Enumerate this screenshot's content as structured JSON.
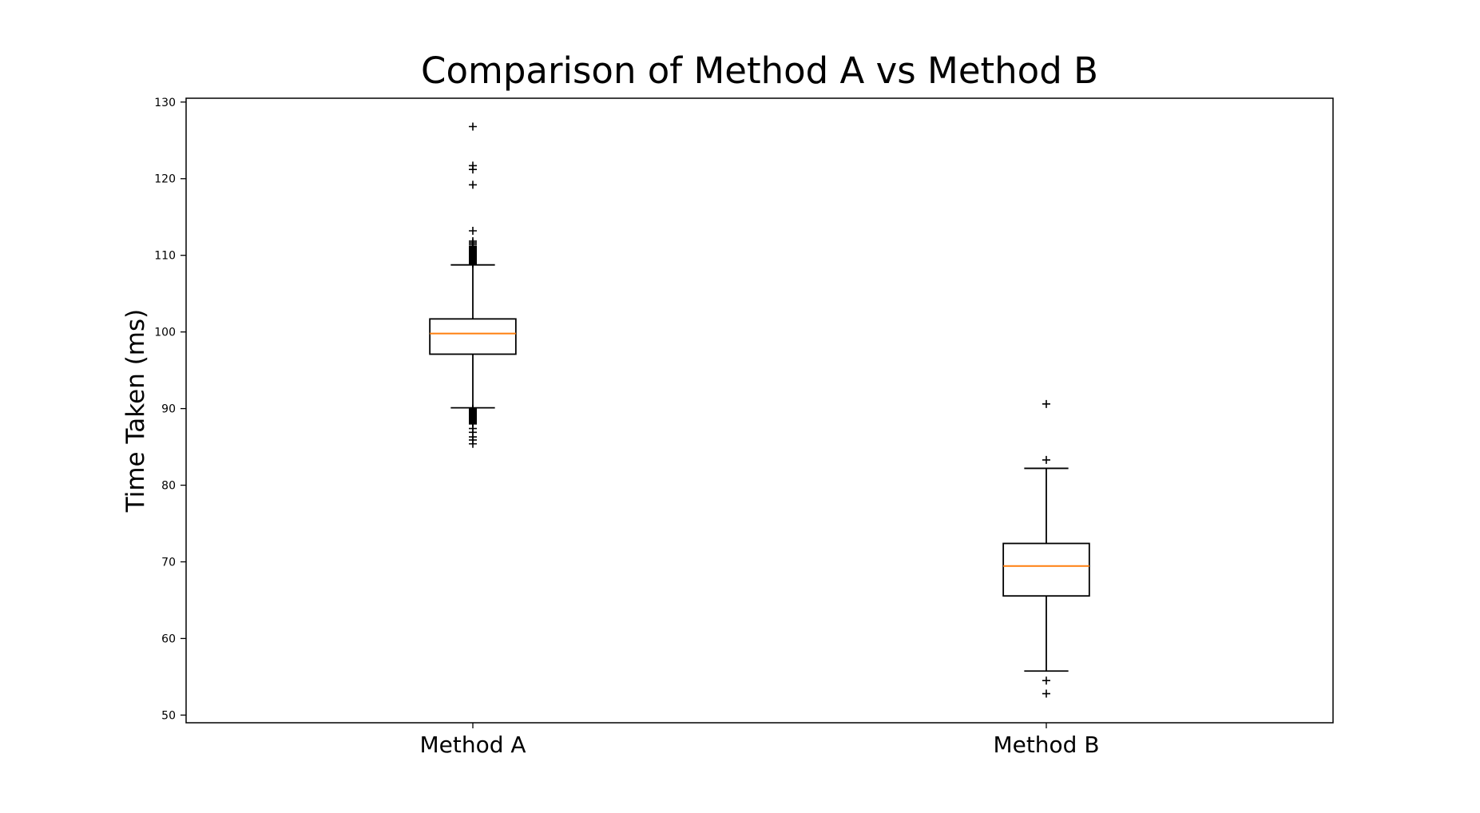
{
  "figure": {
    "background": "#ffffff"
  },
  "chart_data": {
    "type": "boxplot",
    "title": "Comparison of Method A vs Method B",
    "ylabel": "Time Taken (ms)",
    "xlabel": "",
    "categories": [
      "Method A",
      "Method B"
    ],
    "positions": [
      1,
      2
    ],
    "xlim": [
      0.5,
      2.5
    ],
    "ylim": [
      49.0,
      130.5
    ],
    "yticks": [
      50,
      60,
      70,
      80,
      90,
      100,
      110,
      120,
      130
    ],
    "grid": false,
    "legend": "none",
    "box_width": 0.15,
    "cap_width": 0.077,
    "line_color": "#000000",
    "median_color": "#ff7f0e",
    "flier_marker": "+",
    "series": [
      {
        "name": "Method A",
        "position": 1,
        "q1": 97.1,
        "median": 99.8,
        "q3": 101.7,
        "whisker_low": 90.1,
        "whisker_high": 108.75,
        "fliers_high": [
          108.9,
          108.98,
          109.06,
          109.14,
          109.22,
          109.3,
          109.38,
          109.46,
          109.54,
          109.62,
          109.7,
          109.78,
          109.86,
          109.94,
          110.02,
          110.1,
          110.18,
          110.26,
          110.34,
          110.42,
          110.5,
          110.6,
          110.7,
          110.8,
          110.9,
          111.0,
          111.1,
          111.2,
          111.45,
          111.65,
          111.85,
          113.2,
          119.2,
          121.2,
          121.7,
          126.8
        ],
        "fliers_low": [
          90.0,
          89.9,
          89.8,
          89.7,
          89.6,
          89.5,
          89.4,
          89.3,
          89.2,
          89.1,
          89.0,
          88.9,
          88.8,
          88.7,
          88.6,
          88.5,
          88.4,
          88.3,
          88.2,
          88.1,
          88.0,
          87.4,
          86.9,
          86.3,
          85.9,
          85.4
        ]
      },
      {
        "name": "Method B",
        "position": 2,
        "q1": 65.55,
        "median": 69.45,
        "q3": 72.4,
        "whisker_low": 55.75,
        "whisker_high": 82.2,
        "fliers_high": [
          83.3,
          90.6
        ],
        "fliers_low": [
          54.5,
          52.8
        ]
      }
    ]
  }
}
